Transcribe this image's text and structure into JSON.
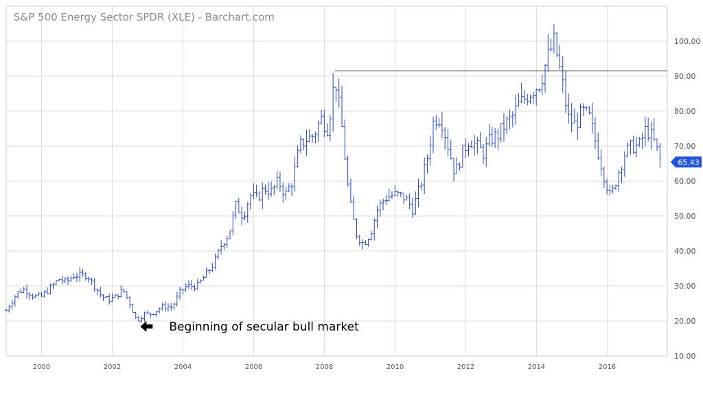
{
  "chart_data": {
    "type": "ohlc",
    "title": "S&P 500 Energy Sector SPDR (XLE) - Barchart.com",
    "xlabel": "",
    "ylabel": "",
    "xlim": [
      1999.0,
      2017.7
    ],
    "ylim": [
      10,
      110
    ],
    "y_ticks": [
      "10.00",
      "20.00",
      "30.00",
      "40.00",
      "50.00",
      "60.00",
      "70.00",
      "80.00",
      "90.00",
      "100.00"
    ],
    "x_ticks": [
      "2000",
      "2002",
      "2004",
      "2006",
      "2008",
      "2010",
      "2012",
      "2014",
      "2016"
    ],
    "grid": true,
    "colors": {
      "bars": "#2244cc",
      "resistance": "#555555",
      "last_badge": "#2255e0",
      "grid": "#dddddd"
    },
    "last_value": "65.43",
    "resistance_line": {
      "value": 91.5,
      "from": 2008.3,
      "to": 2017.7
    },
    "annotation": {
      "text": "Beginning of secular bull market",
      "arrow": "left-arrow-icon",
      "x": 2002.6,
      "y": 19
    },
    "series": [
      {
        "x": [
          1999.0,
          1999.3,
          1999.5,
          1999.8,
          2000.0,
          2000.3,
          2000.5,
          2000.7,
          2000.9,
          2001.1,
          2001.3,
          2001.5,
          2001.7,
          2001.9,
          2002.1,
          2002.3,
          2002.5,
          2002.7,
          2002.9,
          2003.1,
          2003.4,
          2003.7,
          2003.9,
          2004.1,
          2004.4,
          2004.7,
          2004.9,
          2005.1,
          2005.3,
          2005.5,
          2005.7,
          2005.9,
          2006.1,
          2006.3,
          2006.5,
          2006.7,
          2006.9,
          2007.1,
          2007.3,
          2007.5,
          2007.7,
          2007.9,
          2008.1,
          2008.3,
          2008.5,
          2008.7,
          2008.9,
          2009.1,
          2009.3,
          2009.5,
          2009.7,
          2009.9,
          2010.1,
          2010.3,
          2010.5,
          2010.7,
          2010.9,
          2011.1,
          2011.3,
          2011.5,
          2011.7,
          2011.9,
          2012.1,
          2012.3,
          2012.5,
          2012.7,
          2012.9,
          2013.1,
          2013.3,
          2013.5,
          2013.7,
          2013.9,
          2014.1,
          2014.3,
          2014.5,
          2014.7,
          2014.9,
          2015.1,
          2015.3,
          2015.5,
          2015.7,
          2015.9,
          2016.1,
          2016.3,
          2016.5,
          2016.7,
          2016.9,
          2017.1,
          2017.3,
          2017.5
        ],
        "y": [
          23,
          28,
          29,
          27,
          27,
          30,
          32,
          31,
          33,
          33,
          33,
          30,
          27,
          26,
          27,
          29,
          25,
          20,
          22,
          22,
          24,
          24,
          28,
          30,
          30,
          34,
          37,
          42,
          45,
          53,
          50,
          56,
          55,
          58,
          57,
          60,
          56,
          60,
          70,
          72,
          73,
          78,
          75,
          90,
          75,
          55,
          45,
          42,
          45,
          52,
          55,
          56,
          56,
          55,
          52,
          58,
          66,
          78,
          78,
          70,
          62,
          68,
          72,
          70,
          68,
          72,
          73,
          76,
          78,
          82,
          84,
          86,
          88,
          95,
          100,
          90,
          78,
          76,
          80,
          78,
          70,
          62,
          55,
          62,
          68,
          70,
          70,
          75,
          72,
          66
        ]
      }
    ]
  }
}
